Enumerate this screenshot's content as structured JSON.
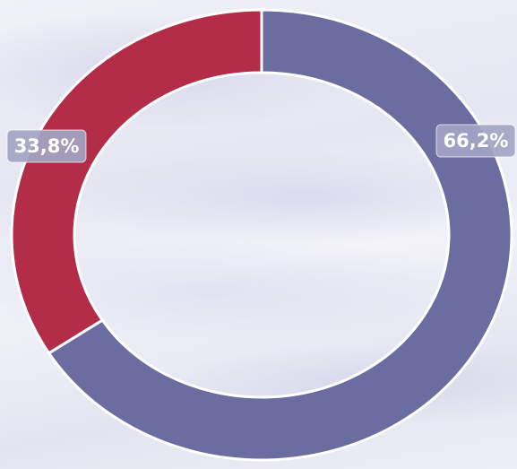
{
  "chart_data": {
    "type": "pie",
    "variant": "donut",
    "slices": [
      {
        "value": 66.2,
        "label": "66,2%",
        "color": "#6b6c9f"
      },
      {
        "value": 33.8,
        "label": "33,8%",
        "color": "#b32d48"
      }
    ],
    "start_angle_deg": 0,
    "direction": "clockwise",
    "label_box_color": "#a3a4c4",
    "separator_color": "#ffffff"
  }
}
